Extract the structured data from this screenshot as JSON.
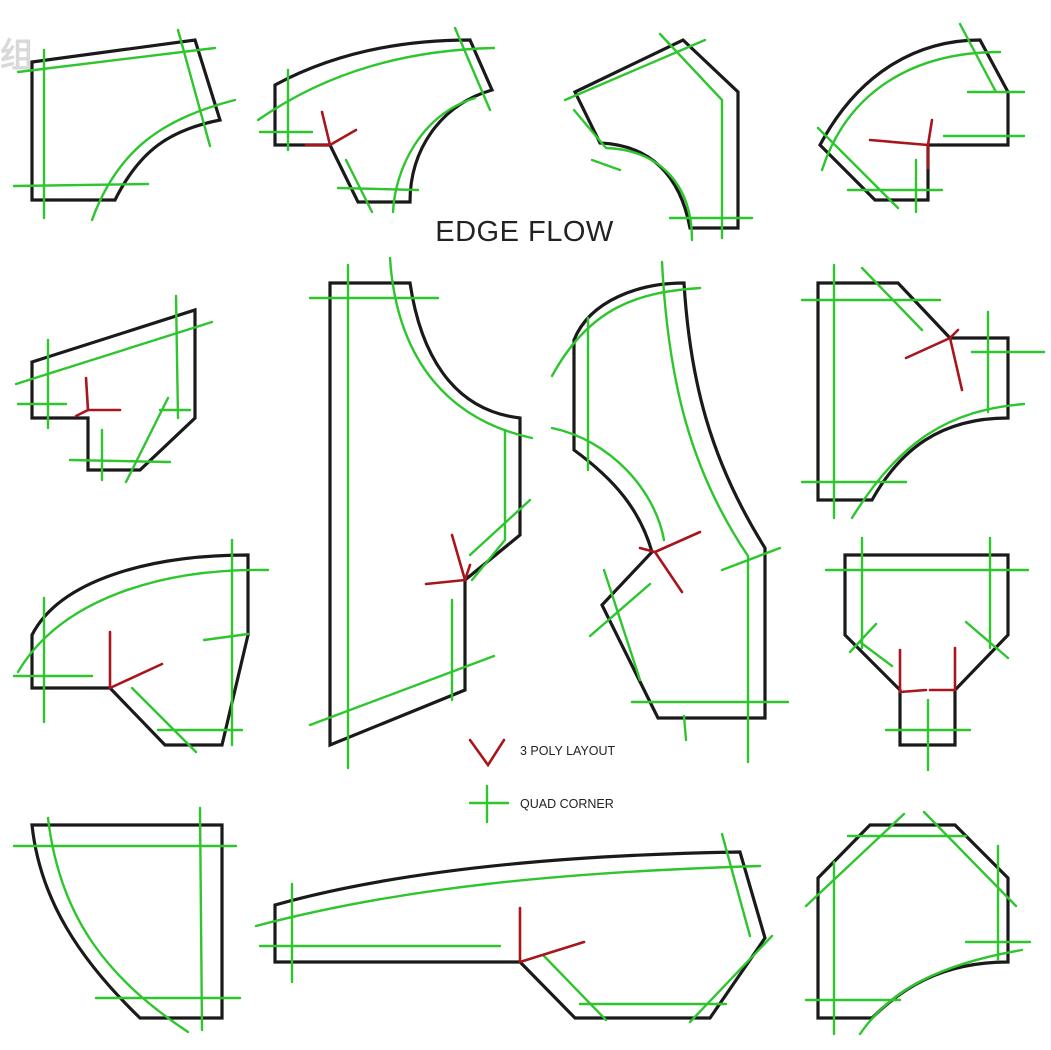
{
  "title": "EDGE FLOW",
  "watermark": "组",
  "legend": [
    {
      "label": "3 POLY LAYOUT",
      "symbol": "three-pole-symbol",
      "color": "#a8161c"
    },
    {
      "label": "QUAD CORNER",
      "symbol": "quad-corner-symbol",
      "color": "#2ec52e"
    }
  ],
  "colors": {
    "outline": "#1a1a1a",
    "edge_flow": "#2ec52e",
    "three_poly": "#a8161c",
    "background": "#ffffff"
  }
}
